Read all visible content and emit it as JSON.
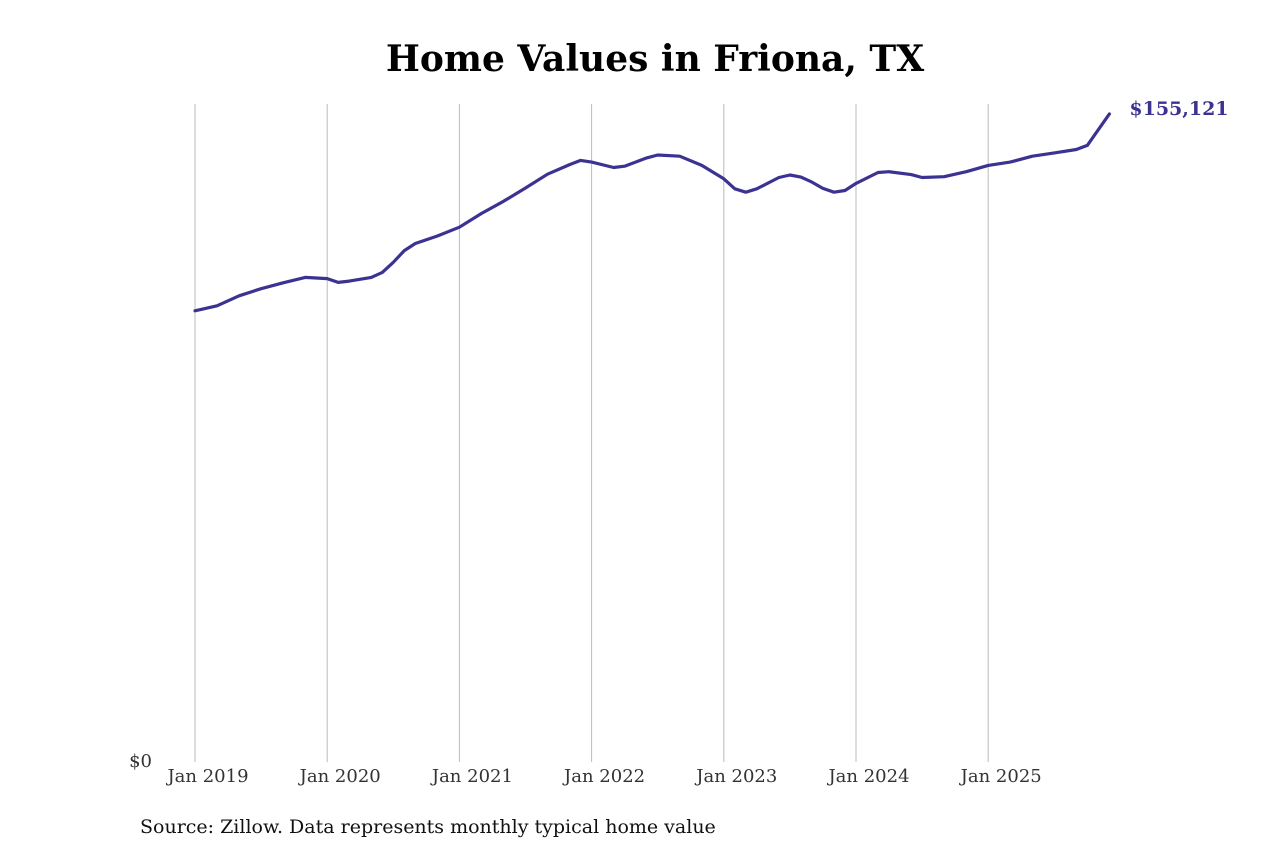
{
  "title": "Home Values in Friona, TX",
  "source": "Source: Zillow. Data represents monthly typical home value",
  "colors": {
    "line": "#3b3291",
    "grid": "#bbbbbb",
    "tick": "#333333",
    "end_label": "#3b3291"
  },
  "chart_data": {
    "type": "line",
    "title": "Home Values in Friona, TX",
    "xlabel": "",
    "ylabel": "",
    "xlim": [
      "2018-12",
      "2025-12"
    ],
    "ylim": [
      0,
      157500
    ],
    "x_ticks": [
      "Jan 2019",
      "Jan 2020",
      "Jan 2021",
      "Jan 2022",
      "Jan 2023",
      "Jan 2024",
      "Jan 2025"
    ],
    "y_ticks": [
      "$0"
    ],
    "grid": "vertical",
    "legend": "none",
    "end_label": "$155,121",
    "series": [
      {
        "points": [
          [
            "2019-01",
            108000
          ],
          [
            "2019-03",
            109200
          ],
          [
            "2019-05",
            111600
          ],
          [
            "2019-07",
            113300
          ],
          [
            "2019-09",
            114700
          ],
          [
            "2019-11",
            116000
          ],
          [
            "2020-01",
            115700
          ],
          [
            "2020-02",
            114800
          ],
          [
            "2020-03",
            115100
          ],
          [
            "2020-05",
            116000
          ],
          [
            "2020-06",
            117200
          ],
          [
            "2020-07",
            119600
          ],
          [
            "2020-08",
            122400
          ],
          [
            "2020-09",
            124100
          ],
          [
            "2020-11",
            125900
          ],
          [
            "2021-01",
            128000
          ],
          [
            "2021-03",
            131300
          ],
          [
            "2021-05",
            134200
          ],
          [
            "2021-07",
            137400
          ],
          [
            "2021-09",
            140700
          ],
          [
            "2021-11",
            143000
          ],
          [
            "2021-12",
            144000
          ],
          [
            "2022-01",
            143600
          ],
          [
            "2022-03",
            142300
          ],
          [
            "2022-04",
            142600
          ],
          [
            "2022-06",
            144600
          ],
          [
            "2022-07",
            145300
          ],
          [
            "2022-09",
            145000
          ],
          [
            "2022-11",
            142800
          ],
          [
            "2023-01",
            139600
          ],
          [
            "2023-02",
            137200
          ],
          [
            "2023-03",
            136400
          ],
          [
            "2023-04",
            137200
          ],
          [
            "2023-06",
            139900
          ],
          [
            "2023-07",
            140500
          ],
          [
            "2023-08",
            140000
          ],
          [
            "2023-09",
            138800
          ],
          [
            "2023-10",
            137300
          ],
          [
            "2023-11",
            136400
          ],
          [
            "2023-12",
            136800
          ],
          [
            "2024-01",
            138500
          ],
          [
            "2024-03",
            141100
          ],
          [
            "2024-04",
            141300
          ],
          [
            "2024-06",
            140600
          ],
          [
            "2024-07",
            139900
          ],
          [
            "2024-09",
            140100
          ],
          [
            "2024-11",
            141300
          ],
          [
            "2025-01",
            142800
          ],
          [
            "2025-03",
            143600
          ],
          [
            "2025-05",
            145000
          ],
          [
            "2025-07",
            145800
          ],
          [
            "2025-09",
            146600
          ],
          [
            "2025-10",
            147600
          ],
          [
            "2025-12",
            155121
          ]
        ]
      }
    ]
  }
}
